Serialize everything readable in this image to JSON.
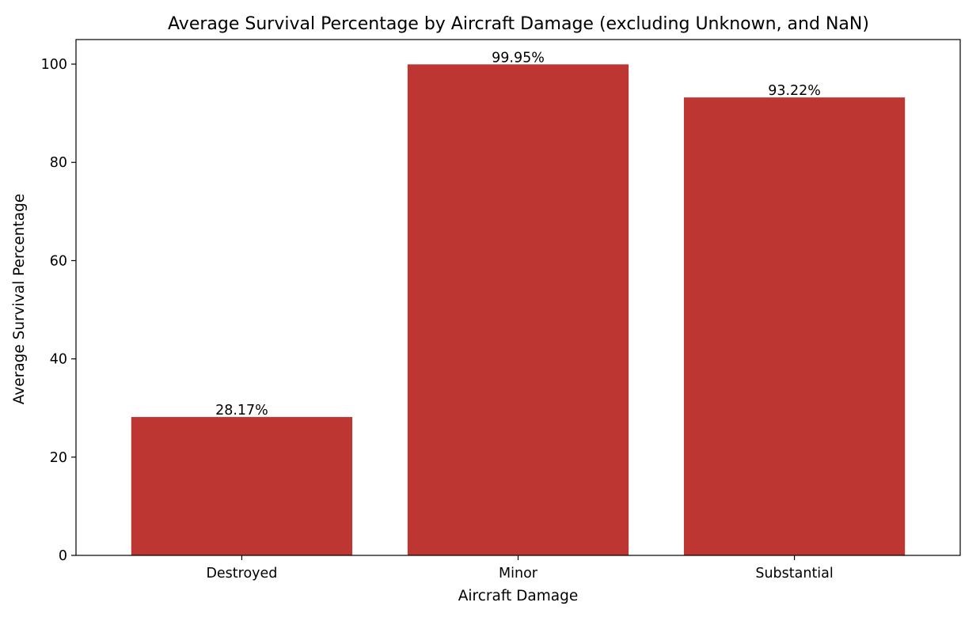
{
  "chart_data": {
    "type": "bar",
    "title": "Average Survival Percentage by Aircraft Damage (excluding Unknown, and NaN)",
    "xlabel": "Aircraft Damage",
    "ylabel": "Average Survival Percentage",
    "categories": [
      "Destroyed",
      "Minor",
      "Substantial"
    ],
    "values": [
      28.17,
      99.95,
      93.22
    ],
    "value_labels": [
      "28.17%",
      "99.95%",
      "93.22%"
    ],
    "ylim": [
      0,
      105
    ],
    "yticks": [
      0,
      20,
      40,
      60,
      80,
      100
    ],
    "grid": false,
    "legend": "none",
    "bar_color": "#bd3632"
  }
}
